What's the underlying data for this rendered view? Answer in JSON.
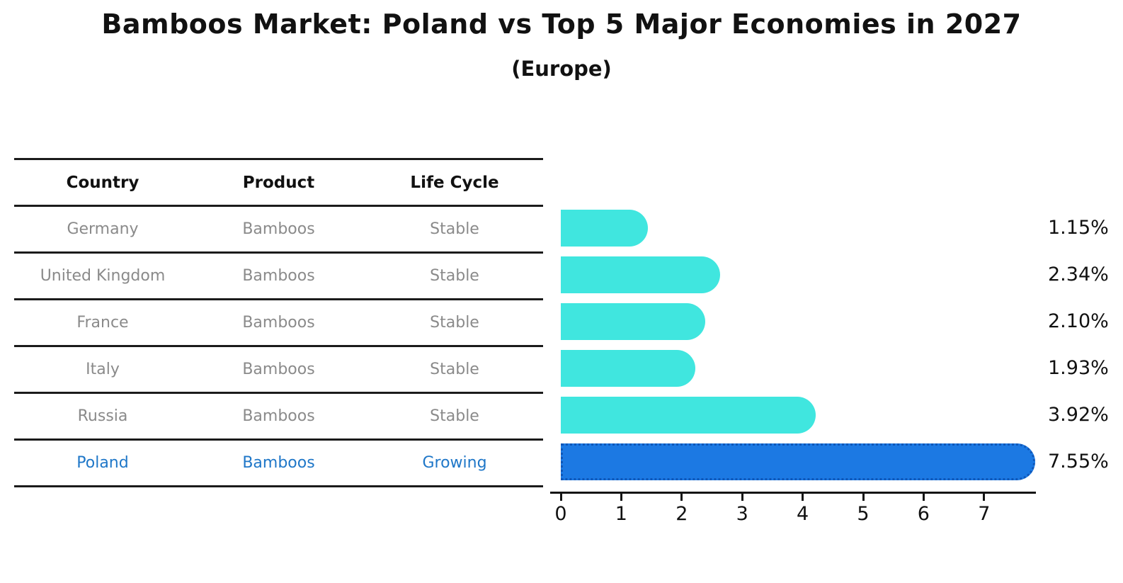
{
  "title": "Bamboos Market: Poland vs Top 5 Major Economies in 2027",
  "subtitle": "(Europe)",
  "table": {
    "headers": [
      "Country",
      "Product",
      "Life Cycle"
    ],
    "rows": [
      {
        "country": "Germany",
        "product": "Bamboos",
        "life_cycle": "Stable",
        "highlight": false
      },
      {
        "country": "United Kingdom",
        "product": "Bamboos",
        "life_cycle": "Stable",
        "highlight": false
      },
      {
        "country": "France",
        "product": "Bamboos",
        "life_cycle": "Stable",
        "highlight": false
      },
      {
        "country": "Italy",
        "product": "Bamboos",
        "life_cycle": "Stable",
        "highlight": false
      },
      {
        "country": "Russia",
        "product": "Bamboos",
        "life_cycle": "Stable",
        "highlight": false
      },
      {
        "country": "Poland",
        "product": "Bamboos",
        "life_cycle": "Growing",
        "highlight": true
      }
    ]
  },
  "chart_data": {
    "type": "bar",
    "orientation": "horizontal",
    "title": "Bamboos Market: Poland vs Top 5 Major Economies in 2027",
    "subtitle": "(Europe)",
    "categories": [
      "Germany",
      "United Kingdom",
      "France",
      "Italy",
      "Russia",
      "Poland"
    ],
    "values": [
      1.15,
      2.34,
      2.1,
      1.93,
      3.92,
      7.55
    ],
    "value_labels": [
      "1.15%",
      "2.34%",
      "2.10%",
      "1.93%",
      "3.92%",
      "7.55%"
    ],
    "xticks": [
      0,
      1,
      2,
      3,
      4,
      5,
      6,
      7
    ],
    "xlim": [
      0,
      7.85
    ],
    "unit": "%",
    "grid": false,
    "legend": false,
    "bar_color": "#40e6df",
    "highlight_bar_color": "#1c79e3",
    "highlight_border_color": "#0f57b8",
    "highlight_index": 5,
    "highlight_text_color": "#1f77c8",
    "body_text_color": "#8a8a8a"
  }
}
